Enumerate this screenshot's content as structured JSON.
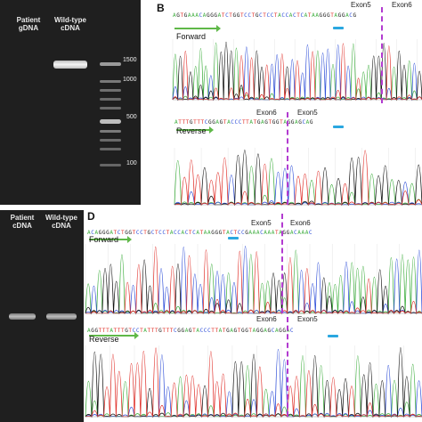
{
  "panel_a": {
    "lane_labels": [
      "Patient\ngDNA",
      "Wild-type\ncDNA"
    ],
    "ladder_labels": [
      "1500",
      "1000",
      "500",
      "100"
    ]
  },
  "panel_b": {
    "letter": "B",
    "forward": {
      "seq": "AGTGAAACAGGGATCTGGTCCTGCTCCTACCACTCATAAGGGTAGGACG",
      "label": "Forward",
      "exon_left": "Exon5",
      "exon_right": "Exon6"
    },
    "reverse": {
      "seq": "ATTTGTTTCGGAGTACCCTTATGAGTGGTAGGAGCAG",
      "label": "Reverse",
      "exon_left": "Exon6",
      "exon_right": "Exon5"
    }
  },
  "panel_c": {
    "lane_labels": [
      "Patient\ncDNA",
      "Wild-type\ncDNA"
    ]
  },
  "panel_d": {
    "letter": "D",
    "forward": {
      "seq": "ACAGGGATCTGGTCCTGCTCCTACCACTCATAAGGGTACTCCGAAACAAATAGGACAAAC",
      "label": "Forward",
      "exon_left": "Exon5",
      "exon_right": "Exon6"
    },
    "reverse": {
      "seq": "AGGTTTATTTGTCCTATTTGTTTCGGAGTACCCTTATGAGTGGTAGGAGCAGGAC",
      "label": "Reverse",
      "exon_left": "Exon6",
      "exon_right": "Exon5"
    }
  },
  "colors": {
    "A": "#3fae3f",
    "C": "#2f4fd8",
    "G": "#111111",
    "T": "#e0302a",
    "junction": "#b23bd0",
    "marker": "#2aa7e0"
  }
}
